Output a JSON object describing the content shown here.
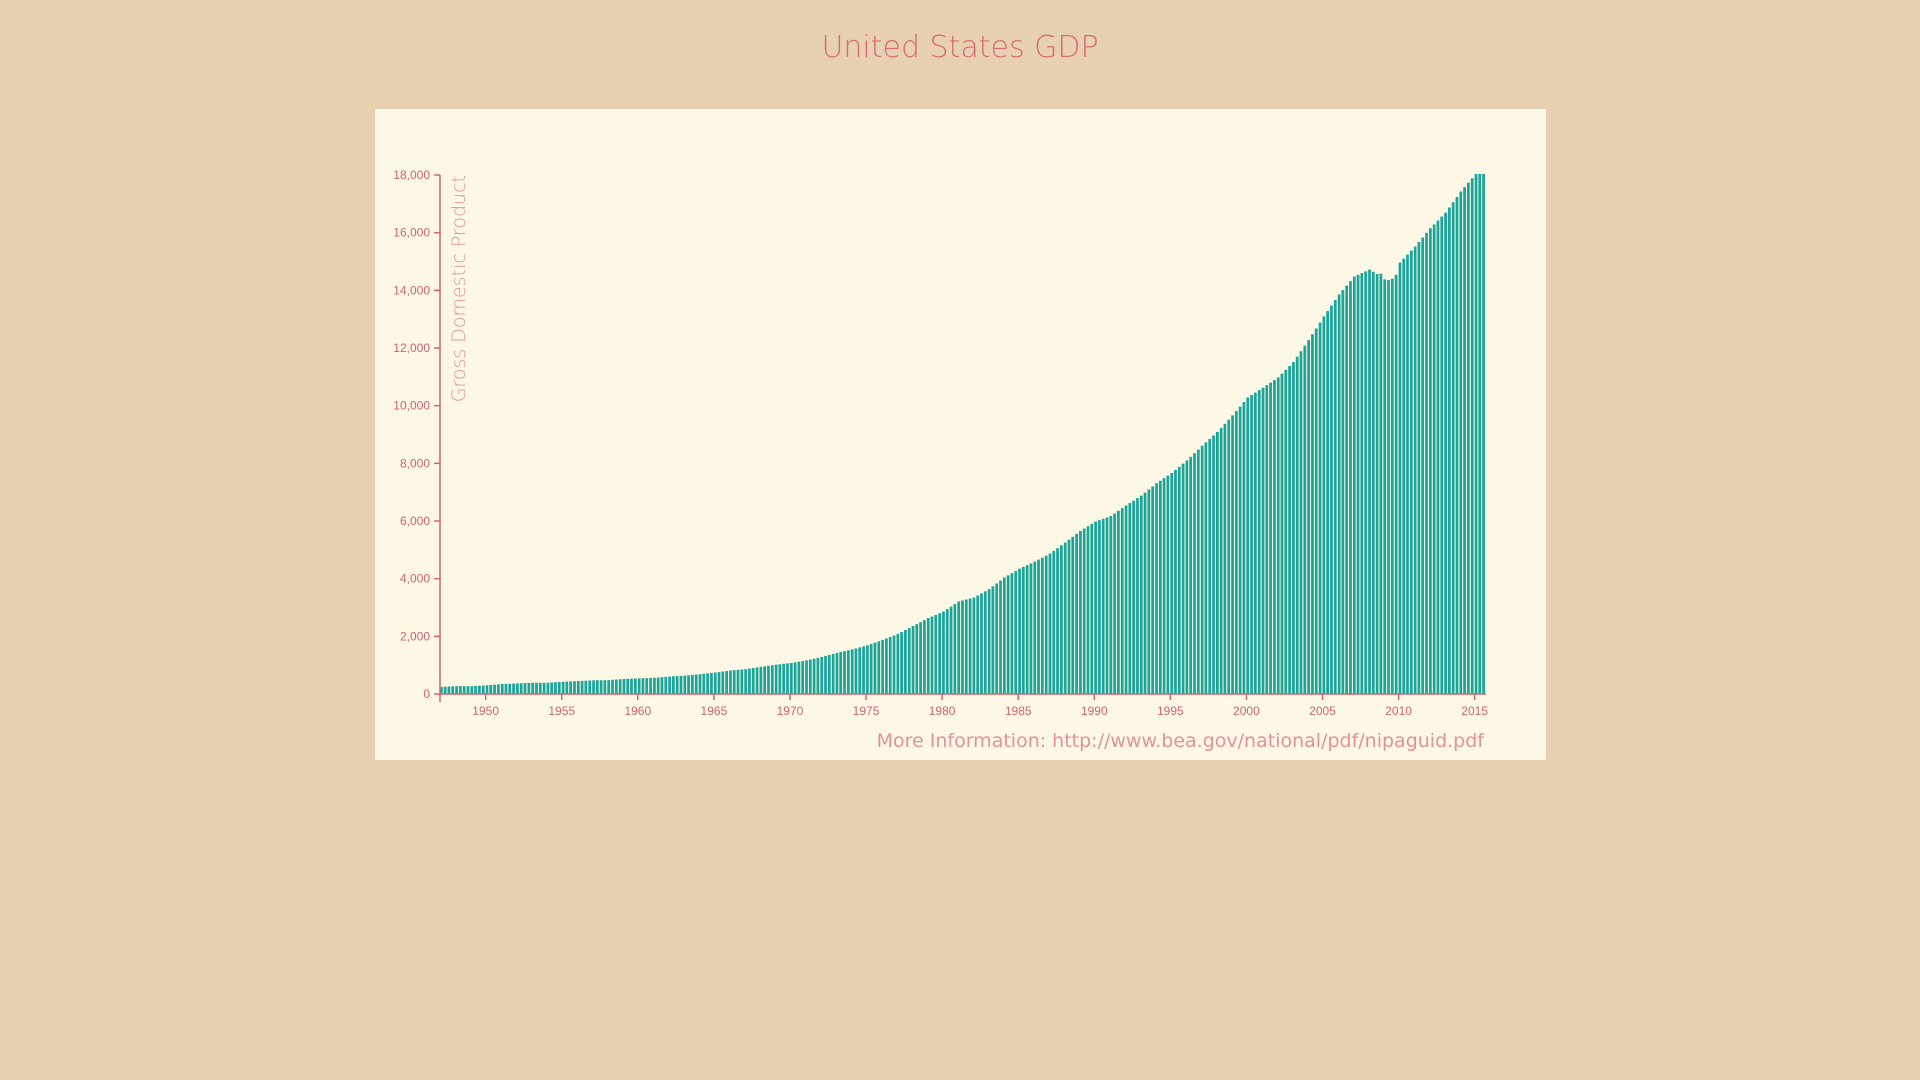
{
  "page": {
    "title": "United States GDP"
  },
  "colors": {
    "background": "#e7d1b2",
    "panel": "#fdf7e6",
    "bar": "#1aa59a",
    "axis": "#d2646c",
    "label": "#e2939a"
  },
  "chart_data": {
    "type": "bar",
    "title": "United States GDP",
    "ylabel": "Gross Domestic Product",
    "xlabel": "",
    "footer": "More Information: http://www.bea.gov/national/pdf/nipaguid.pdf",
    "frequency": "quarterly",
    "xlim": [
      "1947-01-01",
      "2015-07-01"
    ],
    "ylim": [
      0,
      18000
    ],
    "y_ticks": [
      {
        "value": 0,
        "label": "0"
      },
      {
        "value": 2000,
        "label": "2,000"
      },
      {
        "value": 4000,
        "label": "4,000"
      },
      {
        "value": 6000,
        "label": "6,000"
      },
      {
        "value": 8000,
        "label": "8,000"
      },
      {
        "value": 10000,
        "label": "10,000"
      },
      {
        "value": 12000,
        "label": "12,000"
      },
      {
        "value": 14000,
        "label": "14,000"
      },
      {
        "value": 16000,
        "label": "16,000"
      },
      {
        "value": 18000,
        "label": "18,000"
      }
    ],
    "x_ticks": [
      "1950",
      "1955",
      "1960",
      "1965",
      "1970",
      "1975",
      "1980",
      "1985",
      "1990",
      "1995",
      "2000",
      "2005",
      "2010",
      "2015"
    ],
    "grid": false,
    "legend": "none",
    "annual_values": [
      {
        "year": 1947,
        "value": 249
      },
      {
        "year": 1948,
        "value": 274
      },
      {
        "year": 1949,
        "value": 272
      },
      {
        "year": 1950,
        "value": 300
      },
      {
        "year": 1951,
        "value": 347
      },
      {
        "year": 1952,
        "value": 367
      },
      {
        "year": 1953,
        "value": 389
      },
      {
        "year": 1954,
        "value": 391
      },
      {
        "year": 1955,
        "value": 426
      },
      {
        "year": 1956,
        "value": 450
      },
      {
        "year": 1957,
        "value": 474
      },
      {
        "year": 1958,
        "value": 481
      },
      {
        "year": 1959,
        "value": 522
      },
      {
        "year": 1960,
        "value": 543
      },
      {
        "year": 1961,
        "value": 563
      },
      {
        "year": 1962,
        "value": 605
      },
      {
        "year": 1963,
        "value": 638
      },
      {
        "year": 1964,
        "value": 686
      },
      {
        "year": 1965,
        "value": 743
      },
      {
        "year": 1966,
        "value": 815
      },
      {
        "year": 1967,
        "value": 862
      },
      {
        "year": 1968,
        "value": 943
      },
      {
        "year": 1969,
        "value": 1019
      },
      {
        "year": 1970,
        "value": 1075
      },
      {
        "year": 1971,
        "value": 1167
      },
      {
        "year": 1972,
        "value": 1282
      },
      {
        "year": 1973,
        "value": 1428
      },
      {
        "year": 1974,
        "value": 1548
      },
      {
        "year": 1975,
        "value": 1688
      },
      {
        "year": 1976,
        "value": 1877
      },
      {
        "year": 1977,
        "value": 2086
      },
      {
        "year": 1978,
        "value": 2357
      },
      {
        "year": 1979,
        "value": 2632
      },
      {
        "year": 1980,
        "value": 2862
      },
      {
        "year": 1981,
        "value": 3211
      },
      {
        "year": 1982,
        "value": 3345
      },
      {
        "year": 1983,
        "value": 3638
      },
      {
        "year": 1984,
        "value": 4041
      },
      {
        "year": 1985,
        "value": 4347
      },
      {
        "year": 1986,
        "value": 4590
      },
      {
        "year": 1987,
        "value": 4870
      },
      {
        "year": 1988,
        "value": 5253
      },
      {
        "year": 1989,
        "value": 5658
      },
      {
        "year": 1990,
        "value": 5980
      },
      {
        "year": 1991,
        "value": 6174
      },
      {
        "year": 1992,
        "value": 6539
      },
      {
        "year": 1993,
        "value": 6879
      },
      {
        "year": 1994,
        "value": 7309
      },
      {
        "year": 1995,
        "value": 7664
      },
      {
        "year": 1996,
        "value": 8100
      },
      {
        "year": 1997,
        "value": 8609
      },
      {
        "year": 1998,
        "value": 9089
      },
      {
        "year": 1999,
        "value": 9661
      },
      {
        "year": 2000,
        "value": 10285
      },
      {
        "year": 2001,
        "value": 10622
      },
      {
        "year": 2002,
        "value": 10978
      },
      {
        "year": 2003,
        "value": 11511
      },
      {
        "year": 2004,
        "value": 12275
      },
      {
        "year": 2005,
        "value": 13094
      },
      {
        "year": 2006,
        "value": 13856
      },
      {
        "year": 2007,
        "value": 14478
      },
      {
        "year": 2008,
        "value": 14719
      },
      {
        "year": 2009,
        "value": 14419
      },
      {
        "year": 2010,
        "value": 14964
      },
      {
        "year": 2011,
        "value": 15518
      },
      {
        "year": 2012,
        "value": 16155
      },
      {
        "year": 2013,
        "value": 16692
      },
      {
        "year": 2014,
        "value": 17428
      },
      {
        "year": 2015,
        "value": 18037
      }
    ]
  }
}
